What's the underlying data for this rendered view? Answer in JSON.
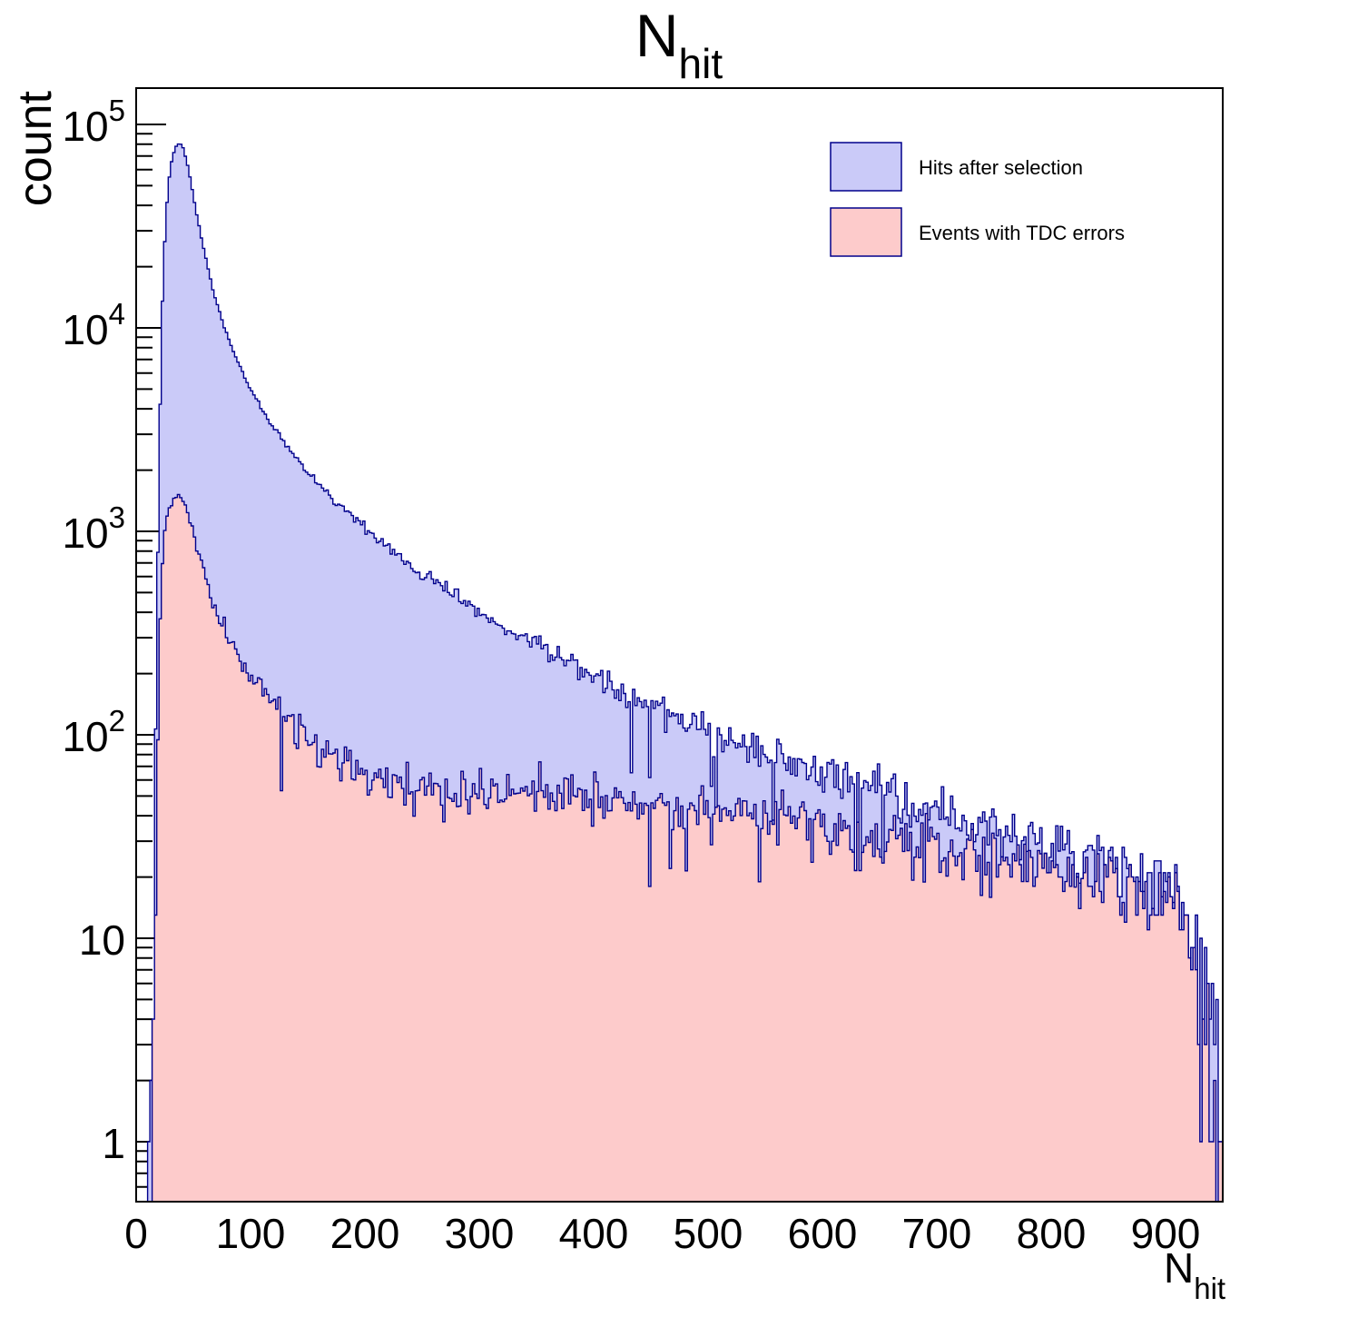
{
  "chart_data": {
    "type": "histogram",
    "title": {
      "base": "N",
      "sub": "hit"
    },
    "xlabel": {
      "base": "N",
      "sub": "hit"
    },
    "ylabel": "count",
    "x_range": [
      0,
      950
    ],
    "bin_width": 2,
    "y_scale": "log",
    "y_min": 0.5,
    "y_max": 151000,
    "grid": false,
    "x_ticks": [
      0,
      100,
      200,
      300,
      400,
      500,
      600,
      700,
      800,
      900
    ],
    "y_ticks": [
      {
        "value": 1,
        "text": "1"
      },
      {
        "value": 10,
        "text": "10"
      },
      {
        "value": 100,
        "base": "10",
        "exp": "2"
      },
      {
        "value": 1000,
        "base": "10",
        "exp": "3"
      },
      {
        "value": 10000,
        "base": "10",
        "exp": "4"
      },
      {
        "value": 100000,
        "base": "10",
        "exp": "5"
      }
    ],
    "legend_position": "top-right",
    "noise": {
      "model": "poisson",
      "seed": 42
    },
    "series": [
      {
        "name": "Hits after selection",
        "fill": "#cacaf8",
        "line": "#00008c",
        "peak": {
          "x": 38,
          "count": 81000
        },
        "envelope": [
          [
            10,
            0
          ],
          [
            12,
            2
          ],
          [
            13,
            1
          ],
          [
            14,
            5
          ],
          [
            15,
            3
          ],
          [
            16,
            30
          ],
          [
            18,
            300
          ],
          [
            20,
            2000
          ],
          [
            22,
            9000
          ],
          [
            24,
            20000
          ],
          [
            26,
            35000
          ],
          [
            28,
            50000
          ],
          [
            30,
            61000
          ],
          [
            32,
            70000
          ],
          [
            34,
            76000
          ],
          [
            36,
            79500
          ],
          [
            38,
            81000
          ],
          [
            40,
            79000
          ],
          [
            42,
            74000
          ],
          [
            44,
            67000
          ],
          [
            46,
            59000
          ],
          [
            48,
            51500
          ],
          [
            50,
            44500
          ],
          [
            53,
            36000
          ],
          [
            56,
            29500
          ],
          [
            60,
            23000
          ],
          [
            65,
            17200
          ],
          [
            70,
            13500
          ],
          [
            75,
            11000
          ],
          [
            80,
            9100
          ],
          [
            85,
            7700
          ],
          [
            90,
            6600
          ],
          [
            95,
            5700
          ],
          [
            100,
            5000
          ],
          [
            110,
            3950
          ],
          [
            120,
            3250
          ],
          [
            130,
            2720
          ],
          [
            140,
            2310
          ],
          [
            150,
            1980
          ],
          [
            160,
            1720
          ],
          [
            170,
            1500
          ],
          [
            180,
            1320
          ],
          [
            190,
            1170
          ],
          [
            200,
            1040
          ],
          [
            215,
            880
          ],
          [
            230,
            755
          ],
          [
            245,
            655
          ],
          [
            260,
            570
          ],
          [
            280,
            480
          ],
          [
            300,
            405
          ],
          [
            320,
            345
          ],
          [
            340,
            297
          ],
          [
            360,
            257
          ],
          [
            380,
            224
          ],
          [
            400,
            196
          ],
          [
            420,
            172
          ],
          [
            440,
            152
          ],
          [
            460,
            135
          ],
          [
            480,
            120
          ],
          [
            500,
            107
          ],
          [
            520,
            96
          ],
          [
            540,
            86
          ],
          [
            560,
            78
          ],
          [
            580,
            70
          ],
          [
            600,
            64
          ],
          [
            625,
            57
          ],
          [
            650,
            51
          ],
          [
            675,
            46
          ],
          [
            700,
            42
          ],
          [
            725,
            38
          ],
          [
            750,
            34
          ],
          [
            775,
            31
          ],
          [
            800,
            28
          ],
          [
            825,
            26
          ],
          [
            850,
            24
          ],
          [
            875,
            22
          ],
          [
            900,
            20
          ],
          [
            908,
            19
          ],
          [
            916,
            16
          ],
          [
            924,
            11
          ],
          [
            932,
            7
          ],
          [
            940,
            4
          ],
          [
            946,
            2
          ],
          [
            950,
            1
          ]
        ]
      },
      {
        "name": "Events with TDC errors",
        "fill": "#fdcbcb",
        "line": "#00008c",
        "peak": {
          "x": 38,
          "count": 1480
        },
        "envelope": [
          [
            12,
            0
          ],
          [
            14,
            2
          ],
          [
            16,
            8
          ],
          [
            18,
            60
          ],
          [
            20,
            250
          ],
          [
            22,
            550
          ],
          [
            24,
            850
          ],
          [
            26,
            1080
          ],
          [
            28,
            1250
          ],
          [
            30,
            1350
          ],
          [
            32,
            1420
          ],
          [
            34,
            1460
          ],
          [
            36,
            1480
          ],
          [
            38,
            1470
          ],
          [
            40,
            1430
          ],
          [
            42,
            1360
          ],
          [
            44,
            1270
          ],
          [
            46,
            1170
          ],
          [
            48,
            1070
          ],
          [
            50,
            970
          ],
          [
            53,
            840
          ],
          [
            56,
            730
          ],
          [
            60,
            610
          ],
          [
            65,
            490
          ],
          [
            70,
            405
          ],
          [
            75,
            345
          ],
          [
            80,
            300
          ],
          [
            85,
            265
          ],
          [
            90,
            237
          ],
          [
            95,
            214
          ],
          [
            100,
            195
          ],
          [
            110,
            163
          ],
          [
            120,
            140
          ],
          [
            130,
            122
          ],
          [
            140,
            108
          ],
          [
            150,
            97
          ],
          [
            160,
            88
          ],
          [
            170,
            81
          ],
          [
            180,
            75
          ],
          [
            190,
            70
          ],
          [
            200,
            66
          ],
          [
            215,
            62
          ],
          [
            230,
            58
          ],
          [
            245,
            56
          ],
          [
            260,
            54
          ],
          [
            280,
            52
          ],
          [
            300,
            51
          ],
          [
            320,
            50
          ],
          [
            340,
            50
          ],
          [
            360,
            49
          ],
          [
            380,
            49
          ],
          [
            400,
            48
          ],
          [
            420,
            48
          ],
          [
            440,
            47
          ],
          [
            460,
            46
          ],
          [
            480,
            45
          ],
          [
            500,
            44
          ],
          [
            520,
            43
          ],
          [
            540,
            41
          ],
          [
            560,
            40
          ],
          [
            580,
            38
          ],
          [
            600,
            36
          ],
          [
            625,
            34
          ],
          [
            650,
            32
          ],
          [
            675,
            30
          ],
          [
            700,
            28
          ],
          [
            725,
            26
          ],
          [
            750,
            25
          ],
          [
            775,
            23
          ],
          [
            800,
            22
          ],
          [
            825,
            21
          ],
          [
            850,
            20
          ],
          [
            875,
            18
          ],
          [
            900,
            17
          ],
          [
            908,
            16
          ],
          [
            916,
            13
          ],
          [
            924,
            9
          ],
          [
            932,
            6
          ],
          [
            940,
            3
          ],
          [
            946,
            1.5
          ],
          [
            950,
            1
          ]
        ]
      }
    ]
  },
  "colors": {
    "background": "#ffffff",
    "frame": "#000000",
    "text": "#000000",
    "histogram_line": "#00008c",
    "series_blue_fill": "#cacaf8",
    "series_pink_fill": "#fdcbcb"
  }
}
